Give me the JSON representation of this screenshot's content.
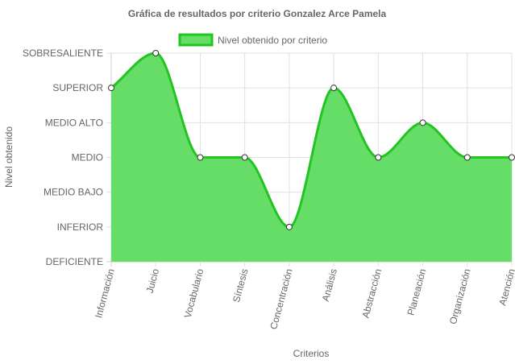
{
  "chart_data": {
    "type": "line",
    "title": "Gráfica de resultados por criterio Gonzalez Arce Pamela",
    "xlabel": "Criterios",
    "ylabel": "Nivel obtenido",
    "legend_position": "top",
    "grid": true,
    "y_levels": [
      "DEFICIENTE",
      "INFERIOR",
      "MEDIO BAJO",
      "MEDIO",
      "MEDIO ALTO",
      "SUPERIOR",
      "SOBRESALIENTE"
    ],
    "categories": [
      "Información",
      "Juicio",
      "Vocabulario",
      "Síntesis",
      "Concentración",
      "Análisis",
      "Abstracción",
      "Planeación",
      "Organización",
      "Atención"
    ],
    "series": [
      {
        "name": "Nivel obtenido por criterio",
        "values": [
          "SUPERIOR",
          "SOBRESALIENTE",
          "MEDIO",
          "MEDIO",
          "INFERIOR",
          "SUPERIOR",
          "MEDIO",
          "MEDIO ALTO",
          "MEDIO",
          "MEDIO"
        ],
        "fill_color": "#66dd66",
        "line_color": "#22c422"
      }
    ]
  }
}
